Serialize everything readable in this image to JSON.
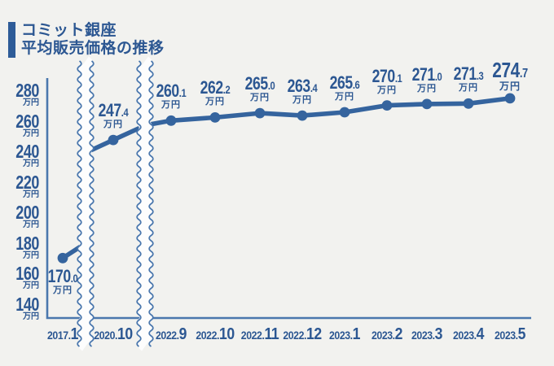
{
  "title": {
    "lines": [
      "コミット銀座",
      "平均販売価格の推移"
    ]
  },
  "colors": {
    "background": "#f2f2ef",
    "text": "#2c5792",
    "line": "#35649e",
    "axis": "#4a77ad",
    "accent_bar": "#2e5c98",
    "break_fill": "#fdfdfd"
  },
  "chart_data": {
    "type": "line",
    "title": "コミット銀座 平均販売価格の推移",
    "unit": "万円",
    "categories": [
      "2017.1",
      "2020.10",
      "2022.9",
      "2022.10",
      "2022.11",
      "2022.12",
      "2023.1",
      "2023.2",
      "2023.3",
      "2023.4",
      "2023.5"
    ],
    "values": [
      170.0,
      247.4,
      260.1,
      262.2,
      265.0,
      263.4,
      265.6,
      270.1,
      271.0,
      271.3,
      274.7
    ],
    "y_ticks": [
      280,
      260,
      240,
      220,
      200,
      180,
      160,
      140
    ],
    "y_tick_unit": "万円",
    "ylim": [
      130,
      288
    ],
    "xlabel": "",
    "ylabel": "万円",
    "grid": false,
    "legend": false,
    "axis_break_after_categories": [
      "2017.1",
      "2020.10"
    ],
    "first_label_position": "below",
    "emphasized_last_point": true
  }
}
